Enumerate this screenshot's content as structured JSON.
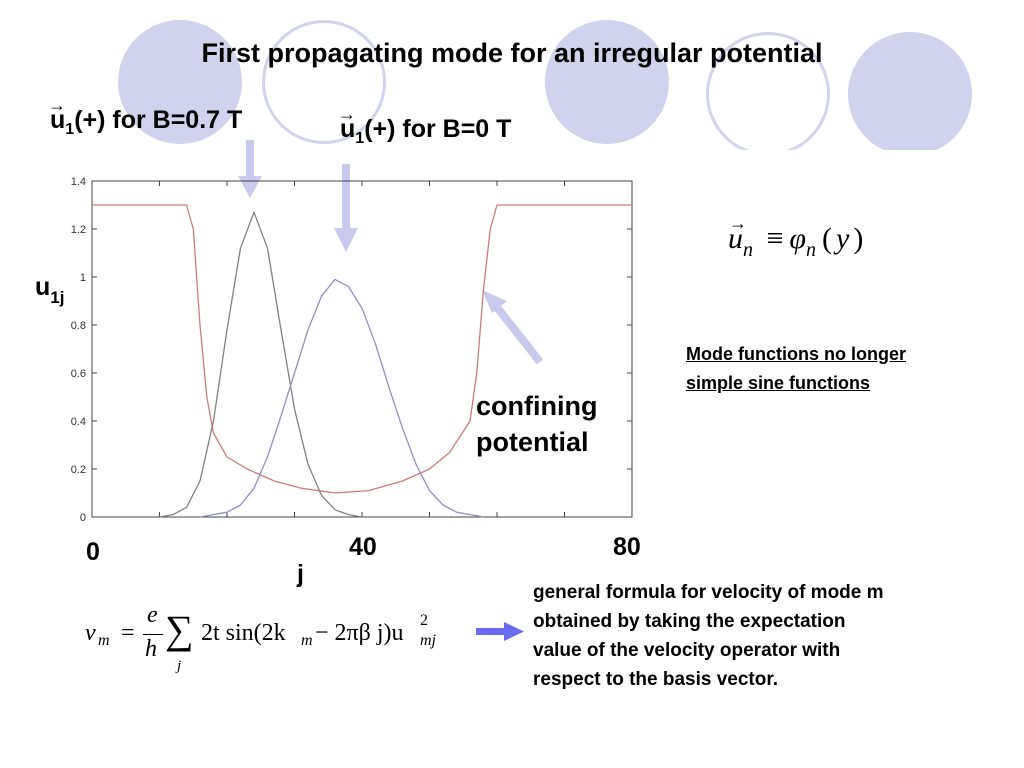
{
  "slide": {
    "title": "First propagating mode for an irregular potential",
    "label_b07": {
      "vec": "u",
      "sub": "1",
      "rest": "(+) for B=0.7 T"
    },
    "label_b0": {
      "vec": "u",
      "sub": "1",
      "rest": "(+) for B=0 T"
    },
    "ylabel_main": "u",
    "ylabel_sub": "1j",
    "xtick_big": [
      "0",
      "40",
      "80"
    ],
    "xlabel": "j",
    "confining_line1": "confining",
    "confining_line2": "potential",
    "mode_note_line1": "Mode functions no longer",
    "mode_note_line2": "simple sine functions",
    "velocity_text": [
      " general formula for velocity of mode m",
      "obtained by taking the expectation",
      "value of the velocity operator with",
      "respect to the basis vector."
    ],
    "eq_mode": {
      "u": "u",
      "n": "n",
      "equiv": "≡",
      "phi": "φ",
      "open": "(",
      "y": "y",
      "close": ")"
    },
    "eq_velocity": {
      "v": "v",
      "m": "m",
      "eq": "=",
      "e": "e",
      "h": "h",
      "sigma": "∑",
      "j": "j",
      "body": "2t sin(2k",
      "km_sub": "m",
      "mid": " − 2πβ  j)u",
      "u_sub": "mj",
      "u_sup": "2"
    },
    "colors": {
      "circle": "#d0d2ee",
      "arrow": "#c8c9ec",
      "blue_arrow": "#6b6bf0",
      "red": "#cd7b78",
      "black_curve": "#808080",
      "blue_curve": "#8f8fc4"
    }
  },
  "chart_data": {
    "type": "line",
    "xlim": [
      0,
      80
    ],
    "ylim": [
      0,
      1.4
    ],
    "yticks": [
      "0",
      "0.2",
      "0.4",
      "0.6",
      "0.8",
      "1",
      "1.2",
      "1.4"
    ],
    "grid": false,
    "series": [
      {
        "color": "#cd7b78",
        "points": [
          [
            0,
            1.3
          ],
          [
            14,
            1.3
          ],
          [
            15,
            1.2
          ],
          [
            16,
            0.8
          ],
          [
            17,
            0.5
          ],
          [
            18,
            0.35
          ],
          [
            20,
            0.25
          ],
          [
            23,
            0.2
          ],
          [
            27,
            0.15
          ],
          [
            31,
            0.12
          ],
          [
            36,
            0.1
          ],
          [
            41,
            0.11
          ],
          [
            46,
            0.15
          ],
          [
            50,
            0.2
          ],
          [
            53,
            0.27
          ],
          [
            56,
            0.4
          ],
          [
            57,
            0.6
          ],
          [
            58,
            0.95
          ],
          [
            59,
            1.2
          ],
          [
            60,
            1.3
          ],
          [
            80,
            1.3
          ]
        ]
      },
      {
        "color": "#808080",
        "points": [
          [
            10,
            0
          ],
          [
            12,
            0.01
          ],
          [
            14,
            0.04
          ],
          [
            16,
            0.15
          ],
          [
            18,
            0.4
          ],
          [
            20,
            0.78
          ],
          [
            22,
            1.12
          ],
          [
            24,
            1.27
          ],
          [
            26,
            1.12
          ],
          [
            28,
            0.78
          ],
          [
            30,
            0.45
          ],
          [
            32,
            0.22
          ],
          [
            34,
            0.09
          ],
          [
            36,
            0.03
          ],
          [
            38,
            0.01
          ],
          [
            40,
            0
          ]
        ]
      },
      {
        "color": "#8f8fc4",
        "points": [
          [
            16,
            0
          ],
          [
            18,
            0.01
          ],
          [
            20,
            0.02
          ],
          [
            22,
            0.05
          ],
          [
            24,
            0.12
          ],
          [
            26,
            0.25
          ],
          [
            28,
            0.42
          ],
          [
            30,
            0.6
          ],
          [
            32,
            0.78
          ],
          [
            34,
            0.92
          ],
          [
            36,
            0.99
          ],
          [
            38,
            0.96
          ],
          [
            40,
            0.87
          ],
          [
            42,
            0.72
          ],
          [
            44,
            0.54
          ],
          [
            46,
            0.37
          ],
          [
            48,
            0.22
          ],
          [
            50,
            0.11
          ],
          [
            52,
            0.05
          ],
          [
            54,
            0.02
          ],
          [
            56,
            0.01
          ],
          [
            58,
            0
          ]
        ]
      }
    ]
  }
}
